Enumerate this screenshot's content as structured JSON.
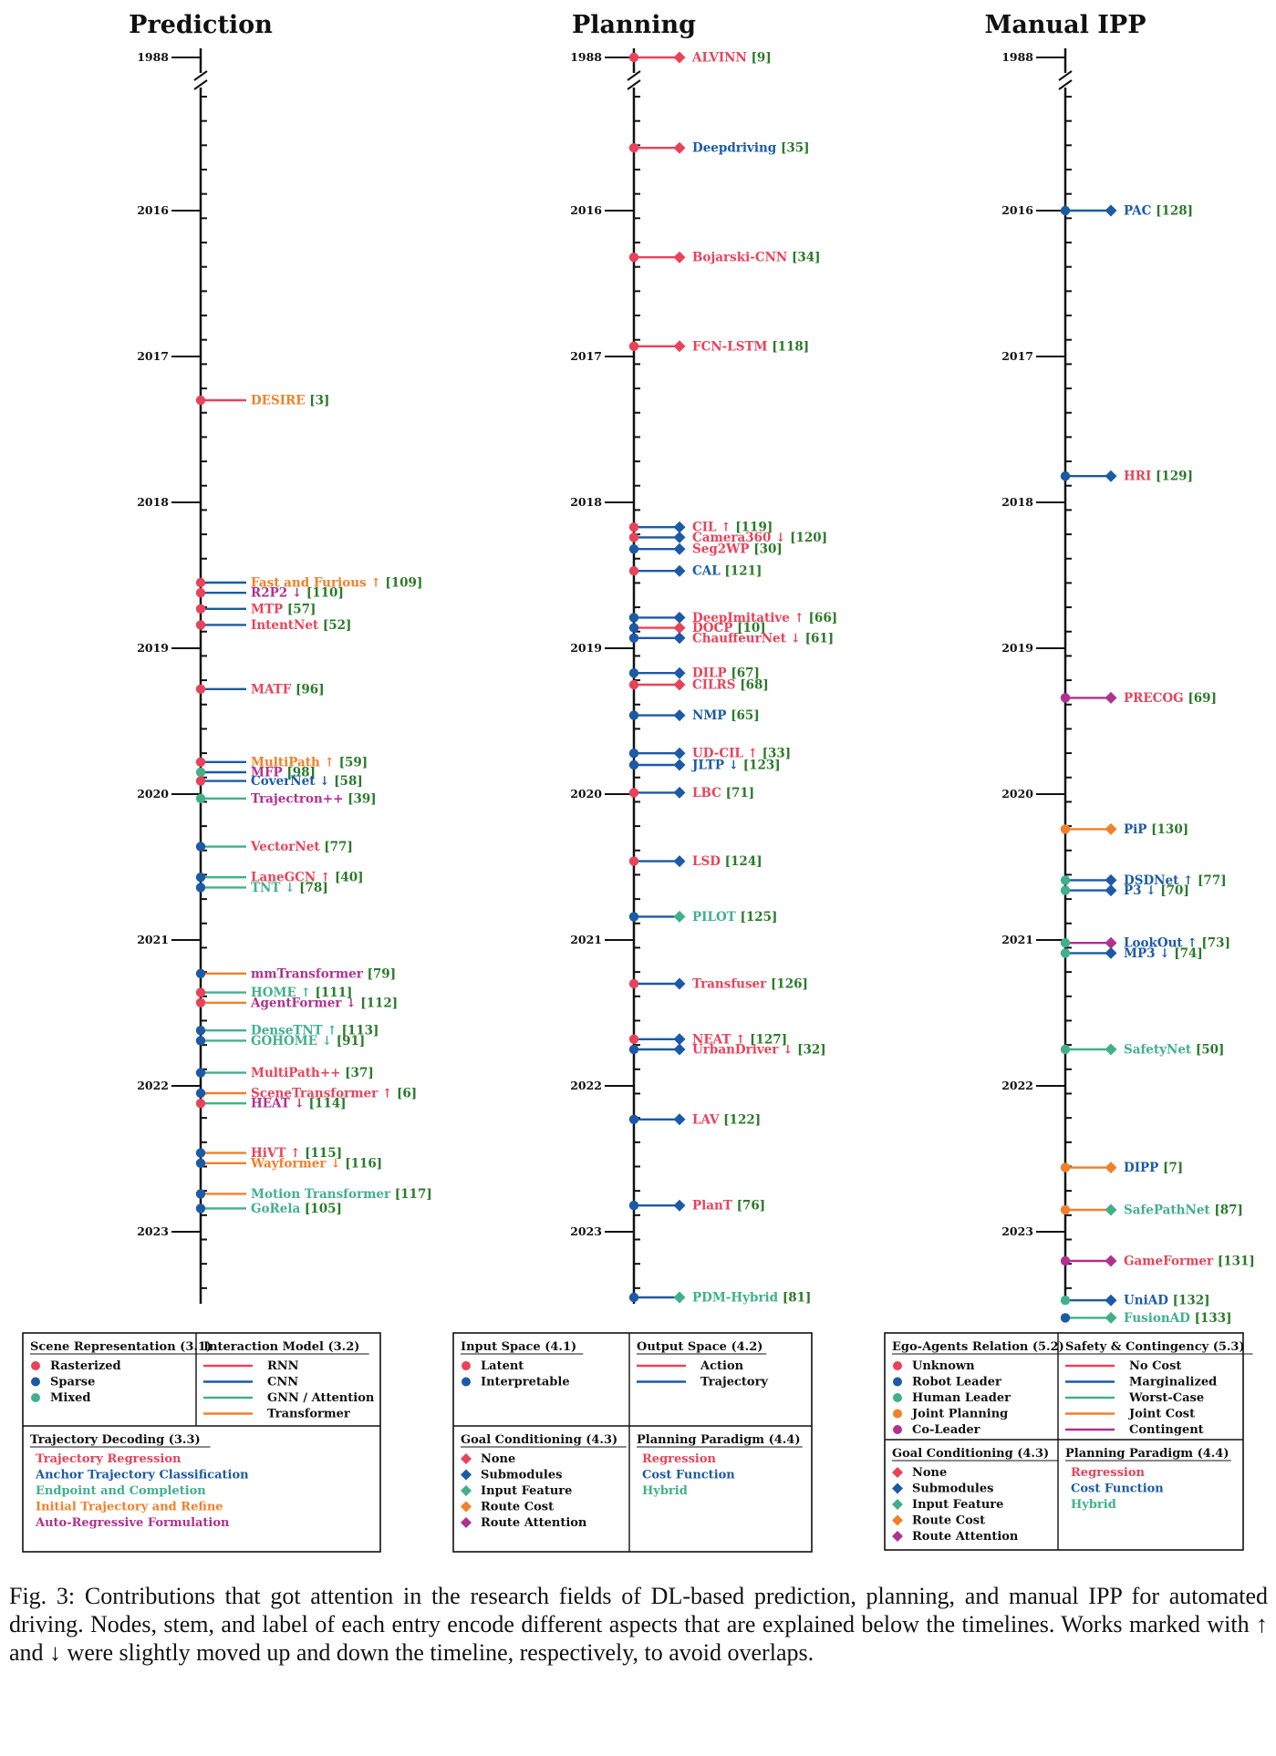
{
  "colors": {
    "red": "#e8435a",
    "blue": "#1c5aa5",
    "green": "#41b08a",
    "orange": "#f08029",
    "purple": "#b0318f",
    "ref_green": "#22cc22"
  },
  "years": [
    "1988",
    "2016",
    "2017",
    "2018",
    "2019",
    "2020",
    "2021",
    "2022",
    "2023"
  ],
  "panels": [
    {
      "title": "Prediction",
      "entries": [
        {
          "label": "DESIRE",
          "ref": "3",
          "t": 2017.3,
          "node": "red",
          "stem": "red",
          "text": "orange"
        },
        {
          "label": "Fast and Furious ↑",
          "ref": "109",
          "t": 2018.55,
          "node": "red",
          "stem": "blue",
          "text": "orange"
        },
        {
          "label": "R2P2 ↓",
          "ref": "110",
          "t": 2018.62,
          "node": "red",
          "stem": "blue",
          "text": "purple"
        },
        {
          "label": "MTP",
          "ref": "57",
          "t": 2018.73,
          "node": "red",
          "stem": "blue",
          "text": "red"
        },
        {
          "label": "IntentNet",
          "ref": "52",
          "t": 2018.84,
          "node": "red",
          "stem": "blue",
          "text": "red"
        },
        {
          "label": "MATF",
          "ref": "96",
          "t": 2019.28,
          "node": "red",
          "stem": "blue",
          "text": "red"
        },
        {
          "label": "MultiPath ↑",
          "ref": "59",
          "t": 2019.78,
          "node": "red",
          "stem": "blue",
          "text": "orange"
        },
        {
          "label": "MFP",
          "ref": "98",
          "t": 2019.85,
          "node": "green",
          "stem": "blue",
          "text": "purple"
        },
        {
          "label": "CoverNet ↓",
          "ref": "58",
          "t": 2019.91,
          "node": "red",
          "stem": "blue",
          "text": "blue"
        },
        {
          "label": "Trajectron++",
          "ref": "39",
          "t": 2020.03,
          "node": "green",
          "stem": "green",
          "text": "purple"
        },
        {
          "label": "VectorNet",
          "ref": "77",
          "t": 2020.36,
          "node": "blue",
          "stem": "green",
          "text": "red"
        },
        {
          "label": "LaneGCN ↑",
          "ref": "40",
          "t": 2020.57,
          "node": "blue",
          "stem": "green",
          "text": "red"
        },
        {
          "label": "TNT ↓",
          "ref": "78",
          "t": 2020.64,
          "node": "blue",
          "stem": "green",
          "text": "green"
        },
        {
          "label": "mmTransformer",
          "ref": "79",
          "t": 2021.23,
          "node": "blue",
          "stem": "orange",
          "text": "purple"
        },
        {
          "label": "HOME ↑",
          "ref": "111",
          "t": 2021.36,
          "node": "red",
          "stem": "green",
          "text": "green"
        },
        {
          "label": "AgentFormer ↓",
          "ref": "112",
          "t": 2021.43,
          "node": "red",
          "stem": "orange",
          "text": "purple"
        },
        {
          "label": "DenseTNT ↑",
          "ref": "113",
          "t": 2021.62,
          "node": "blue",
          "stem": "green",
          "text": "green"
        },
        {
          "label": "GOHOME ↓",
          "ref": "91",
          "t": 2021.69,
          "node": "blue",
          "stem": "green",
          "text": "green"
        },
        {
          "label": "MultiPath++",
          "ref": "37",
          "t": 2021.91,
          "node": "blue",
          "stem": "green",
          "text": "red"
        },
        {
          "label": "SceneTransformer ↑",
          "ref": "6",
          "t": 2022.05,
          "node": "blue",
          "stem": "orange",
          "text": "red"
        },
        {
          "label": "HEAT ↓",
          "ref": "114",
          "t": 2022.12,
          "node": "red",
          "stem": "green",
          "text": "purple"
        },
        {
          "label": "HiVT ↑",
          "ref": "115",
          "t": 2022.46,
          "node": "blue",
          "stem": "orange",
          "text": "red"
        },
        {
          "label": "Wayformer ↓",
          "ref": "116",
          "t": 2022.53,
          "node": "blue",
          "stem": "orange",
          "text": "orange"
        },
        {
          "label": "Motion Transformer",
          "ref": "117",
          "t": 2022.74,
          "node": "blue",
          "stem": "orange",
          "text": "green"
        },
        {
          "label": "GoRela",
          "ref": "105",
          "t": 2022.84,
          "node": "blue",
          "stem": "green",
          "text": "green"
        }
      ]
    },
    {
      "title": "Planning",
      "entries": [
        {
          "label": "ALVINN",
          "ref": "9",
          "t": 1988.0,
          "node": "red",
          "stem": "red",
          "text": "red"
        },
        {
          "label": "Deepdriving",
          "ref": "35",
          "t": 2015.62,
          "node": "red",
          "stem": "red",
          "text": "blue"
        },
        {
          "label": "Bojarski-CNN",
          "ref": "34",
          "t": 2016.32,
          "node": "red",
          "stem": "red",
          "text": "red"
        },
        {
          "label": "FCN-LSTM",
          "ref": "118",
          "t": 2016.93,
          "node": "red",
          "stem": "red",
          "text": "red"
        },
        {
          "label": "CIL ↑",
          "ref": "119",
          "t": 2018.17,
          "node": "red",
          "stem": "blue",
          "text": "red"
        },
        {
          "label": "Camera360 ↓",
          "ref": "120",
          "t": 2018.24,
          "node": "red",
          "stem": "blue",
          "text": "red"
        },
        {
          "label": "Seg2WP",
          "ref": "30",
          "t": 2018.32,
          "node": "blue",
          "stem": "blue",
          "text": "red"
        },
        {
          "label": "CAL",
          "ref": "121",
          "t": 2018.47,
          "node": "red",
          "stem": "blue",
          "text": "blue"
        },
        {
          "label": "DeepImitative ↑",
          "ref": "66",
          "t": 2018.79,
          "node": "blue",
          "stem": "blue",
          "text": "red"
        },
        {
          "label": "DOCP",
          "ref": "10",
          "t": 2018.86,
          "node": "blue",
          "stem": "red",
          "text": "red"
        },
        {
          "label": "ChauffeurNet ↓",
          "ref": "61",
          "t": 2018.93,
          "node": "blue",
          "stem": "blue",
          "text": "red"
        },
        {
          "label": "DILP",
          "ref": "67",
          "t": 2019.17,
          "node": "blue",
          "stem": "blue",
          "text": "red"
        },
        {
          "label": "CILRS",
          "ref": "68",
          "t": 2019.25,
          "node": "red",
          "stem": "red",
          "text": "red"
        },
        {
          "label": "NMP",
          "ref": "65",
          "t": 2019.46,
          "node": "blue",
          "stem": "blue",
          "text": "blue"
        },
        {
          "label": "UD-CIL ↑",
          "ref": "33",
          "t": 2019.72,
          "node": "blue",
          "stem": "blue",
          "text": "red"
        },
        {
          "label": "JLTP ↓",
          "ref": "123",
          "t": 2019.8,
          "node": "blue",
          "stem": "blue",
          "text": "blue"
        },
        {
          "label": "LBC",
          "ref": "71",
          "t": 2019.99,
          "node": "red",
          "stem": "blue",
          "text": "red"
        },
        {
          "label": "LSD",
          "ref": "124",
          "t": 2020.46,
          "node": "red",
          "stem": "blue",
          "text": "red"
        },
        {
          "label": "PILOT",
          "ref": "125",
          "t": 2020.84,
          "node": "blue",
          "stem": "blue",
          "text": "green"
        },
        {
          "label": "Transfuser",
          "ref": "126",
          "t": 2021.3,
          "node": "red",
          "stem": "blue",
          "text": "red"
        },
        {
          "label": "NEAT ↑",
          "ref": "127",
          "t": 2021.68,
          "node": "red",
          "stem": "blue",
          "text": "red"
        },
        {
          "label": "UrbanDriver ↓",
          "ref": "32",
          "t": 2021.75,
          "node": "blue",
          "stem": "blue",
          "text": "red"
        },
        {
          "label": "LAV",
          "ref": "122",
          "t": 2022.23,
          "node": "blue",
          "stem": "blue",
          "text": "red"
        },
        {
          "label": "PlanT",
          "ref": "76",
          "t": 2022.82,
          "node": "blue",
          "stem": "blue",
          "text": "red"
        },
        {
          "label": "PDM-Hybrid",
          "ref": "81",
          "t": 2023.45,
          "node": "blue",
          "stem": "blue",
          "text": "green"
        }
      ]
    },
    {
      "title": "Manual IPP",
      "entries": [
        {
          "label": "PAC",
          "ref": "128",
          "t": 2016.0,
          "node": "blue",
          "stem": "blue",
          "text": "blue"
        },
        {
          "label": "HRI",
          "ref": "129",
          "t": 2017.82,
          "node": "blue",
          "stem": "blue",
          "text": "red"
        },
        {
          "label": "PRECOG",
          "ref": "69",
          "t": 2019.34,
          "node": "purple",
          "stem": "purple",
          "text": "red"
        },
        {
          "label": "PiP",
          "ref": "130",
          "t": 2020.24,
          "node": "orange",
          "stem": "orange",
          "text": "blue"
        },
        {
          "label": "DSDNet ↑",
          "ref": "77",
          "t": 2020.59,
          "node": "green",
          "stem": "blue",
          "text": "blue"
        },
        {
          "label": "P3 ↓",
          "ref": "70",
          "t": 2020.66,
          "node": "green",
          "stem": "blue",
          "text": "blue"
        },
        {
          "label": "LookOut ↑",
          "ref": "73",
          "t": 2021.02,
          "node": "green",
          "stem": "purple",
          "text": "blue"
        },
        {
          "label": "MP3 ↓",
          "ref": "74",
          "t": 2021.09,
          "node": "green",
          "stem": "blue",
          "text": "blue"
        },
        {
          "label": "SafetyNet",
          "ref": "50",
          "t": 2021.75,
          "node": "green",
          "stem": "green",
          "text": "green"
        },
        {
          "label": "DIPP",
          "ref": "7",
          "t": 2022.56,
          "node": "orange",
          "stem": "orange",
          "text": "blue"
        },
        {
          "label": "SafePathNet",
          "ref": "87",
          "t": 2022.85,
          "node": "orange",
          "stem": "orange",
          "text": "green"
        },
        {
          "label": "GameFormer",
          "ref": "131",
          "t": 2023.2,
          "node": "purple",
          "stem": "purple",
          "text": "red"
        },
        {
          "label": "UniAD",
          "ref": "132",
          "t": 2023.47,
          "node": "green",
          "stem": "blue",
          "text": "blue"
        },
        {
          "label": "FusionAD",
          "ref": "133",
          "t": 2023.59,
          "node": "blue",
          "stem": "green",
          "text": "green"
        }
      ]
    }
  ],
  "legends": [
    {
      "cells": [
        {
          "title": "Scene Representation (3.1)",
          "kind": "dot",
          "items": [
            {
              "label": "Rasterized",
              "c": "red"
            },
            {
              "label": "Sparse",
              "c": "blue"
            },
            {
              "label": "Mixed",
              "c": "green"
            }
          ]
        },
        {
          "title": "Interaction Model (3.2)",
          "kind": "line",
          "items": [
            {
              "label": "RNN",
              "c": "red"
            },
            {
              "label": "CNN",
              "c": "blue"
            },
            {
              "label": "GNN / Attention",
              "c": "green"
            },
            {
              "label": "Transformer",
              "c": "orange"
            }
          ]
        },
        {
          "title": "Trajectory Decoding (3.3)",
          "kind": "text",
          "items": [
            {
              "label": "Trajectory Regression",
              "c": "red"
            },
            {
              "label": "Anchor Trajectory Classification",
              "c": "blue"
            },
            {
              "label": "Endpoint and Completion",
              "c": "green"
            },
            {
              "label": "Initial Trajectory and Refine",
              "c": "orange"
            },
            {
              "label": "Auto-Regressive Formulation",
              "c": "purple"
            }
          ]
        }
      ]
    },
    {
      "cells": [
        {
          "title": "Input Space (4.1)",
          "kind": "dot",
          "items": [
            {
              "label": "Latent",
              "c": "red"
            },
            {
              "label": "Interpretable",
              "c": "blue"
            }
          ]
        },
        {
          "title": "Output Space (4.2)",
          "kind": "line",
          "items": [
            {
              "label": "Action",
              "c": "red"
            },
            {
              "label": "Trajectory",
              "c": "blue"
            }
          ]
        },
        {
          "title": "Goal Conditioning (4.3)",
          "kind": "diamond",
          "items": [
            {
              "label": "None",
              "c": "red"
            },
            {
              "label": "Submodules",
              "c": "blue"
            },
            {
              "label": "Input Feature",
              "c": "green"
            },
            {
              "label": "Route Cost",
              "c": "orange"
            },
            {
              "label": "Route Attention",
              "c": "purple"
            }
          ]
        },
        {
          "title": "Planning Paradigm (4.4)",
          "kind": "text",
          "items": [
            {
              "label": "Regression",
              "c": "red"
            },
            {
              "label": "Cost Function",
              "c": "blue"
            },
            {
              "label": "Hybrid",
              "c": "green"
            }
          ]
        }
      ]
    },
    {
      "cells": [
        {
          "title": "Ego-Agents Relation (5.2)",
          "kind": "dot",
          "items": [
            {
              "label": "Unknown",
              "c": "red"
            },
            {
              "label": "Robot Leader",
              "c": "blue"
            },
            {
              "label": "Human Leader",
              "c": "green"
            },
            {
              "label": "Joint Planning",
              "c": "orange"
            },
            {
              "label": "Co-Leader",
              "c": "purple"
            }
          ]
        },
        {
          "title": "Safety & Contingency (5.3)",
          "kind": "line",
          "items": [
            {
              "label": "No Cost",
              "c": "red"
            },
            {
              "label": "Marginalized",
              "c": "blue"
            },
            {
              "label": "Worst-Case",
              "c": "green"
            },
            {
              "label": "Joint Cost",
              "c": "orange"
            },
            {
              "label": "Contingent",
              "c": "purple"
            }
          ]
        },
        {
          "title": "Goal Conditioning (4.3)",
          "kind": "diamond",
          "items": [
            {
              "label": "None",
              "c": "red"
            },
            {
              "label": "Submodules",
              "c": "blue"
            },
            {
              "label": "Input Feature",
              "c": "green"
            },
            {
              "label": "Route Cost",
              "c": "orange"
            },
            {
              "label": "Route Attention",
              "c": "purple"
            }
          ]
        },
        {
          "title": "Planning Paradigm (4.4)",
          "kind": "text",
          "items": [
            {
              "label": "Regression",
              "c": "red"
            },
            {
              "label": "Cost Function",
              "c": "blue"
            },
            {
              "label": "Hybrid",
              "c": "green"
            }
          ]
        }
      ]
    }
  ],
  "caption": "Fig. 3: Contributions that got attention in the research fields of DL-based prediction, planning, and manual IPP for automated driving. Nodes, stem, and label of each entry encode different aspects that are explained below the timelines. Works marked with ↑ and ↓ were slightly moved up and down the timeline, respectively, to avoid overlaps."
}
